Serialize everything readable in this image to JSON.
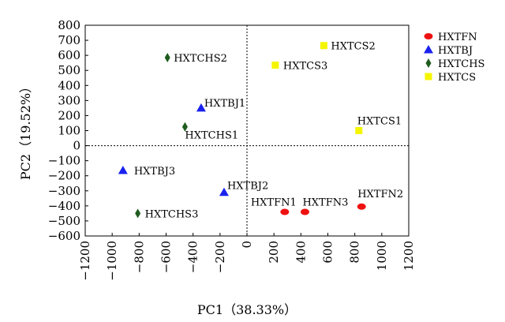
{
  "chart_data": {
    "type": "scatter",
    "xlabel": "PC1（38.33%）",
    "ylabel": "PC2（19.52%）",
    "xlim": [
      -1200,
      1200
    ],
    "ylim": [
      -600,
      800
    ],
    "xticks": [
      -1200,
      -1000,
      -800,
      -600,
      -400,
      -200,
      0,
      200,
      400,
      600,
      800,
      1000,
      1200
    ],
    "xtick_labels": [
      "−1200",
      "−1000",
      "−800",
      "−600",
      "−400",
      "−200",
      "0",
      "200",
      "400",
      "600",
      "800",
      "1000",
      "1200"
    ],
    "yticks": [
      800,
      700,
      600,
      500,
      400,
      300,
      200,
      100,
      0,
      -100,
      -200,
      -300,
      -400,
      -500,
      -600
    ],
    "ytick_labels": [
      "800",
      "700",
      "600",
      "500",
      "400",
      "300",
      "200",
      "100",
      "0",
      "−100",
      "−200",
      "−300",
      "−400",
      "−500",
      "−600"
    ],
    "zero_lines": true,
    "legend_position": "top-right",
    "series": [
      {
        "name": "HXTFN",
        "marker": "ellipse",
        "color": "#ee1111",
        "points": [
          {
            "label": "HXTFN1",
            "x": 280,
            "y": -440
          },
          {
            "label": "HXTFN3",
            "x": 430,
            "y": -440
          },
          {
            "label": "HXTFN2",
            "x": 850,
            "y": -405
          }
        ]
      },
      {
        "name": "HXTBJ",
        "marker": "triangle",
        "color": "#1a22ee",
        "points": [
          {
            "label": "HXTBJ1",
            "x": -340,
            "y": 250
          },
          {
            "label": "HXTBJ3",
            "x": -920,
            "y": -165
          },
          {
            "label": "HXTBJ2",
            "x": -170,
            "y": -310
          }
        ]
      },
      {
        "name": "HXTCHS",
        "marker": "diamond",
        "color": "#1f5c1f",
        "points": [
          {
            "label": "HXTCHS2",
            "x": -590,
            "y": 585
          },
          {
            "label": "HXTCHS1",
            "x": -460,
            "y": 125
          },
          {
            "label": "HXTCHS3",
            "x": -810,
            "y": -450
          }
        ]
      },
      {
        "name": "HXTCS",
        "marker": "square",
        "color": "#f5f500",
        "points": [
          {
            "label": "HXTCS2",
            "x": 570,
            "y": 665
          },
          {
            "label": "HXTCS3",
            "x": 210,
            "y": 535
          },
          {
            "label": "HXTCS1",
            "x": 830,
            "y": 100
          }
        ]
      }
    ]
  }
}
